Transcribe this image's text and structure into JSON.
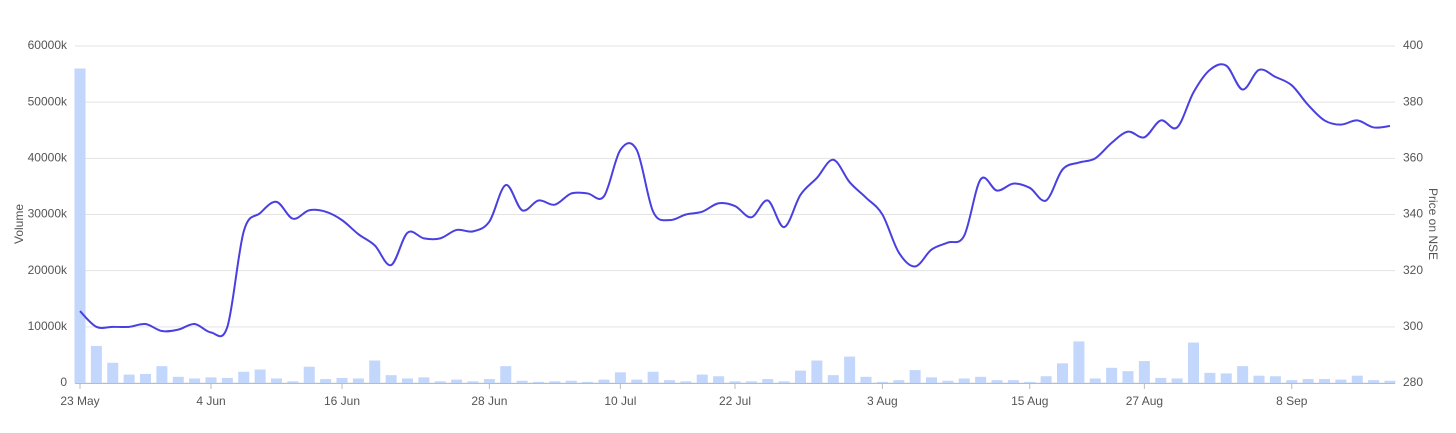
{
  "chart_data": {
    "type": "bar-line",
    "ylabel": "Volume",
    "y2label": "Price on NSE",
    "categories": [
      "23 May",
      null,
      null,
      null,
      null,
      null,
      null,
      null,
      "4 Jun",
      null,
      null,
      null,
      null,
      null,
      null,
      null,
      "16 Jun",
      null,
      null,
      null,
      null,
      null,
      null,
      null,
      null,
      "28 Jun",
      null,
      null,
      null,
      null,
      null,
      null,
      null,
      "10 Jul",
      null,
      null,
      null,
      null,
      null,
      null,
      "22 Jul",
      null,
      null,
      null,
      null,
      null,
      null,
      null,
      null,
      "3 Aug",
      null,
      null,
      null,
      null,
      null,
      null,
      null,
      null,
      "15 Aug",
      null,
      null,
      null,
      null,
      null,
      null,
      "27 Aug",
      null,
      null,
      null,
      null,
      null,
      null,
      null,
      null,
      "8 Sep",
      null,
      null,
      null,
      null,
      null,
      null
    ],
    "series": [
      {
        "type": "bar",
        "axis": "y",
        "color": "#c3d6fb",
        "values": [
          56000,
          6600,
          3600,
          1500,
          1600,
          3000,
          1100,
          800,
          1000,
          900,
          2000,
          2400,
          800,
          300,
          2900,
          700,
          900,
          800,
          4000,
          1400,
          800,
          1000,
          300,
          600,
          300,
          700,
          3000,
          400,
          200,
          300,
          400,
          200,
          600,
          1900,
          600,
          2000,
          500,
          300,
          1500,
          1200,
          300,
          300,
          700,
          300,
          2200,
          4000,
          1400,
          4700,
          1100,
          200,
          500,
          2300,
          1000,
          400,
          800,
          1100,
          500,
          500,
          200,
          1200,
          3500,
          7400,
          800,
          2700,
          2100,
          3900,
          900,
          800,
          7200,
          1800,
          1700,
          3000,
          1300,
          1200,
          500,
          700,
          700,
          600,
          1300,
          500,
          400
        ]
      },
      {
        "type": "line",
        "axis": "y2",
        "color": "#4a3fe0",
        "values": [
          305.6,
          300,
          300,
          300,
          301,
          298.5,
          299,
          301,
          298,
          300,
          334,
          340.5,
          344.5,
          338.5,
          341.5,
          341,
          338,
          333,
          329,
          322,
          333.5,
          331.5,
          331.5,
          334.5,
          334,
          337.5,
          350.5,
          341.5,
          345,
          343.5,
          347.5,
          347.5,
          346.5,
          363,
          363,
          341,
          338,
          340,
          341,
          344,
          343,
          339,
          345,
          335.5,
          347,
          353,
          359.5,
          351.5,
          346,
          340,
          326.5,
          321.5,
          327.5,
          330,
          332.5,
          352.5,
          348.5,
          351,
          349.5,
          345,
          356,
          358.5,
          360,
          365.5,
          369.5,
          367.5,
          373.5,
          371,
          383.5,
          391.5,
          393,
          384.5,
          391.5,
          389,
          386,
          379,
          373.5,
          372,
          373.5,
          371,
          371.5
        ]
      }
    ],
    "ylim": [
      0,
      60000
    ],
    "yticks": [
      0,
      {
        "value": 10000,
        "label": "10000k"
      },
      {
        "value": 20000,
        "label": "20000k"
      },
      {
        "value": 30000,
        "label": "30000k"
      },
      {
        "value": 40000,
        "label": "40000k"
      },
      {
        "value": 50000,
        "label": "50000k"
      },
      {
        "value": 60000,
        "label": "60000k"
      }
    ],
    "y2lim": [
      280,
      400
    ],
    "y2ticks": [
      280,
      300,
      320,
      340,
      360,
      380,
      400
    ],
    "grid": true
  }
}
